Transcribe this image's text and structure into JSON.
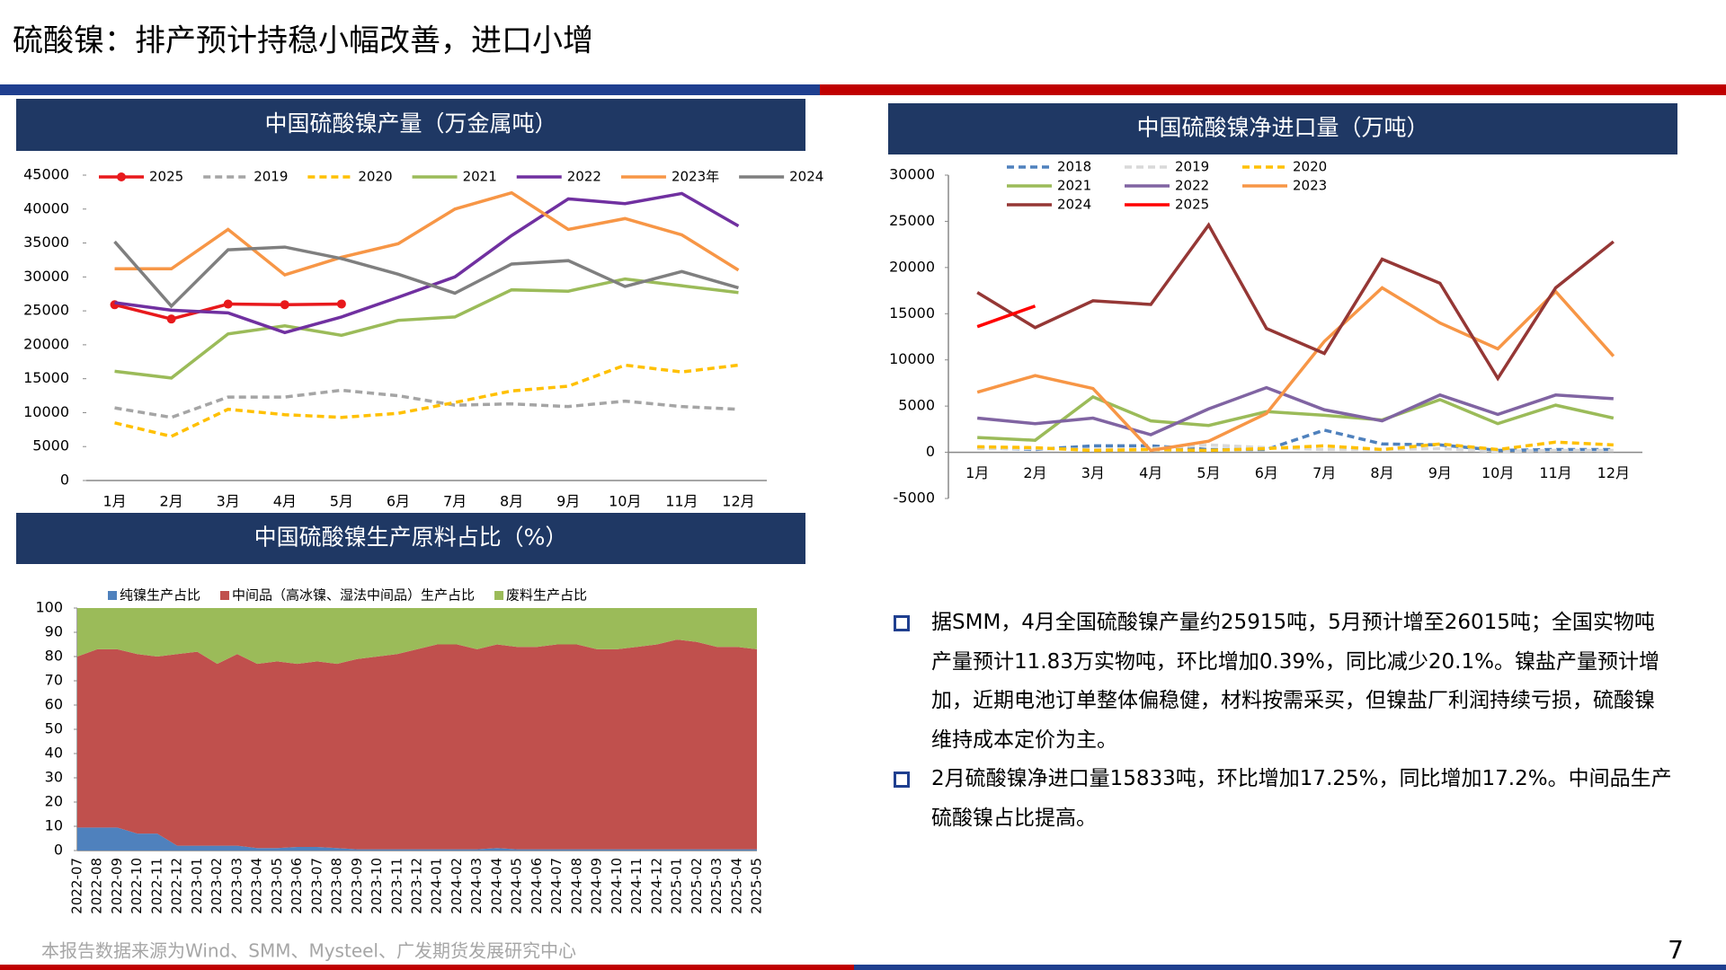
{
  "title": "硫酸镍：排产预计持稳小幅改善，进口小增",
  "bullets": [
    "据SMM，4月全国硫酸镍产量约25915吨，5月预计增至26015吨；全国实物吨产量预计11.83万实物吨，环比增加0.39%，同比减少20.1%。镍盐产量预计增加，近期电池订单整体偏稳健，材料按需采买，但镍盐厂利润持续亏损，硫酸镍维持成本定价为主。",
    "2月硫酸镍净进口量15833吨，环比增加17.25%，同比增加17.2%。中间品生产硫酸镍占比提高。"
  ],
  "footer": "本报告数据来源为Wind、SMM、Mysteel、广发期货发展研究中心",
  "page_number": "7",
  "chart_data": [
    {
      "type": "line",
      "title": "中国硫酸镍产量（万金属吨）",
      "categories": [
        "1月",
        "2月",
        "3月",
        "4月",
        "5月",
        "6月",
        "7月",
        "8月",
        "9月",
        "10月",
        "11月",
        "12月"
      ],
      "ylim": [
        0,
        45000
      ],
      "yticks": [
        0,
        5000,
        10000,
        15000,
        20000,
        25000,
        30000,
        35000,
        40000,
        45000
      ],
      "series": [
        {
          "name": "2025",
          "color": "#e8191c",
          "marker": true,
          "values": [
            25900,
            23800,
            26000,
            25915,
            26015,
            null,
            null,
            null,
            null,
            null,
            null,
            null
          ]
        },
        {
          "name": "2019",
          "color": "#a5a5a5",
          "style": "dashed",
          "values": [
            10700,
            9300,
            12300,
            12300,
            13300,
            12500,
            11100,
            11300,
            10900,
            11700,
            10900,
            10500
          ]
        },
        {
          "name": "2020",
          "color": "#ffc000",
          "style": "dashed",
          "values": [
            8500,
            6500,
            10500,
            9700,
            9300,
            9900,
            11500,
            13200,
            13900,
            17000,
            16000,
            17000
          ]
        },
        {
          "name": "2021",
          "color": "#9bbb59",
          "values": [
            16100,
            15100,
            21600,
            22800,
            21400,
            23600,
            24100,
            28100,
            27900,
            29700,
            28700,
            27700
          ]
        },
        {
          "name": "2022",
          "color": "#7030a0",
          "values": [
            26200,
            25100,
            24700,
            21800,
            24100,
            27000,
            30000,
            36100,
            41500,
            40800,
            42300,
            37500
          ]
        },
        {
          "name": "2023年",
          "color": "#f79646",
          "values": [
            31200,
            31200,
            37000,
            30300,
            32900,
            34900,
            40000,
            42400,
            37000,
            38600,
            36200,
            31000
          ]
        },
        {
          "name": "2024",
          "color": "#7f7f7f",
          "values": [
            35200,
            25700,
            34000,
            34400,
            32700,
            30400,
            27600,
            31900,
            32400,
            28600,
            30800,
            28400
          ]
        }
      ]
    },
    {
      "type": "line",
      "title": "中国硫酸镍净进口量（万吨）",
      "categories": [
        "1月",
        "2月",
        "3月",
        "4月",
        "5月",
        "6月",
        "7月",
        "8月",
        "9月",
        "10月",
        "11月",
        "12月"
      ],
      "ylim": [
        -5000,
        30000
      ],
      "yticks": [
        -5000,
        0,
        5000,
        10000,
        15000,
        20000,
        25000,
        30000
      ],
      "series": [
        {
          "name": "2018",
          "color": "#4f81bd",
          "style": "dashed",
          "values": [
            500,
            300,
            700,
            700,
            300,
            300,
            2400,
            900,
            800,
            200,
            300,
            300
          ]
        },
        {
          "name": "2019",
          "color": "#d9d9d9",
          "style": "dashed",
          "values": [
            400,
            400,
            300,
            400,
            800,
            500,
            300,
            300,
            400,
            100,
            200,
            200
          ]
        },
        {
          "name": "2020",
          "color": "#ffc000",
          "style": "dashed",
          "values": [
            600,
            500,
            200,
            300,
            200,
            400,
            700,
            300,
            900,
            300,
            1100,
            800
          ]
        },
        {
          "name": "2021",
          "color": "#9bbb59",
          "values": [
            1600,
            1300,
            6000,
            3400,
            2900,
            4400,
            4000,
            3500,
            5700,
            3100,
            5100,
            3700
          ]
        },
        {
          "name": "2022",
          "color": "#8064a2",
          "values": [
            3700,
            3100,
            3700,
            1900,
            4700,
            7000,
            4600,
            3400,
            6200,
            4100,
            6200,
            5800
          ]
        },
        {
          "name": "2023",
          "color": "#f79646",
          "values": [
            6500,
            8300,
            6900,
            200,
            1200,
            4200,
            12000,
            17800,
            14000,
            11200,
            17400,
            10400
          ]
        },
        {
          "name": "2024",
          "color": "#953735",
          "values": [
            17300,
            13500,
            16400,
            16000,
            24600,
            13400,
            10700,
            20900,
            18300,
            8000,
            17800,
            22800
          ]
        },
        {
          "name": "2025",
          "color": "#ff0000",
          "values": [
            13600,
            15833,
            null,
            null,
            null,
            null,
            null,
            null,
            null,
            null,
            null,
            null
          ]
        }
      ]
    },
    {
      "type": "stacked_area",
      "title": "中国硫酸镍生产原料占比（%）",
      "categories": [
        "2022-07",
        "2022-08",
        "2022-09",
        "2022-10",
        "2022-11",
        "2022-12",
        "2023-01",
        "2023-02",
        "2023-03",
        "2023-04",
        "2023-05",
        "2023-06",
        "2023-07",
        "2023-08",
        "2023-09",
        "2023-10",
        "2023-11",
        "2023-12",
        "2024-01",
        "2024-02",
        "2024-03",
        "2024-04",
        "2024-05",
        "2024-06",
        "2024-07",
        "2024-08",
        "2024-09",
        "2024-10",
        "2024-11",
        "2024-12",
        "2025-01",
        "2025-02",
        "2025-03",
        "2025-04",
        "2025-05"
      ],
      "ylim": [
        0,
        100
      ],
      "yticks": [
        0,
        10,
        20,
        30,
        40,
        50,
        60,
        70,
        80,
        90,
        100
      ],
      "series": [
        {
          "name": "纯镍生产占比",
          "color": "#4f81bd",
          "values": [
            9.5,
            9.5,
            9.5,
            7,
            7,
            2,
            2,
            2,
            2,
            1,
            1,
            1.5,
            1.5,
            1,
            0.5,
            0.5,
            0.5,
            0.5,
            0.5,
            0.5,
            0.5,
            1,
            0.5,
            0.5,
            0.5,
            0.5,
            0.5,
            0.5,
            0.5,
            0.5,
            0.5,
            0.5,
            0.5,
            0.5,
            0.5
          ]
        },
        {
          "name": "中间品（高冰镍、湿法中间品）生产占比",
          "color": "#c0504d",
          "values": [
            70.5,
            73.5,
            73.5,
            74,
            73,
            79,
            80,
            75,
            79,
            76,
            77,
            75.5,
            76.5,
            76,
            78.5,
            79.5,
            80.5,
            82.5,
            84.5,
            84.5,
            82.5,
            84,
            83.5,
            83.5,
            84.5,
            84.5,
            82.5,
            82.5,
            83.5,
            84.5,
            86.5,
            85.5,
            83.5,
            83.5,
            82.5
          ]
        },
        {
          "name": "废料生产占比",
          "color": "#9bbb59",
          "values": [
            20,
            17,
            17,
            19,
            20,
            19,
            18,
            23,
            19,
            23,
            22,
            23,
            22,
            23,
            21,
            20,
            19,
            17,
            15,
            15,
            17,
            15,
            16,
            16,
            15,
            15,
            17,
            17,
            16,
            15,
            13,
            14,
            16,
            16,
            17
          ]
        }
      ]
    }
  ]
}
